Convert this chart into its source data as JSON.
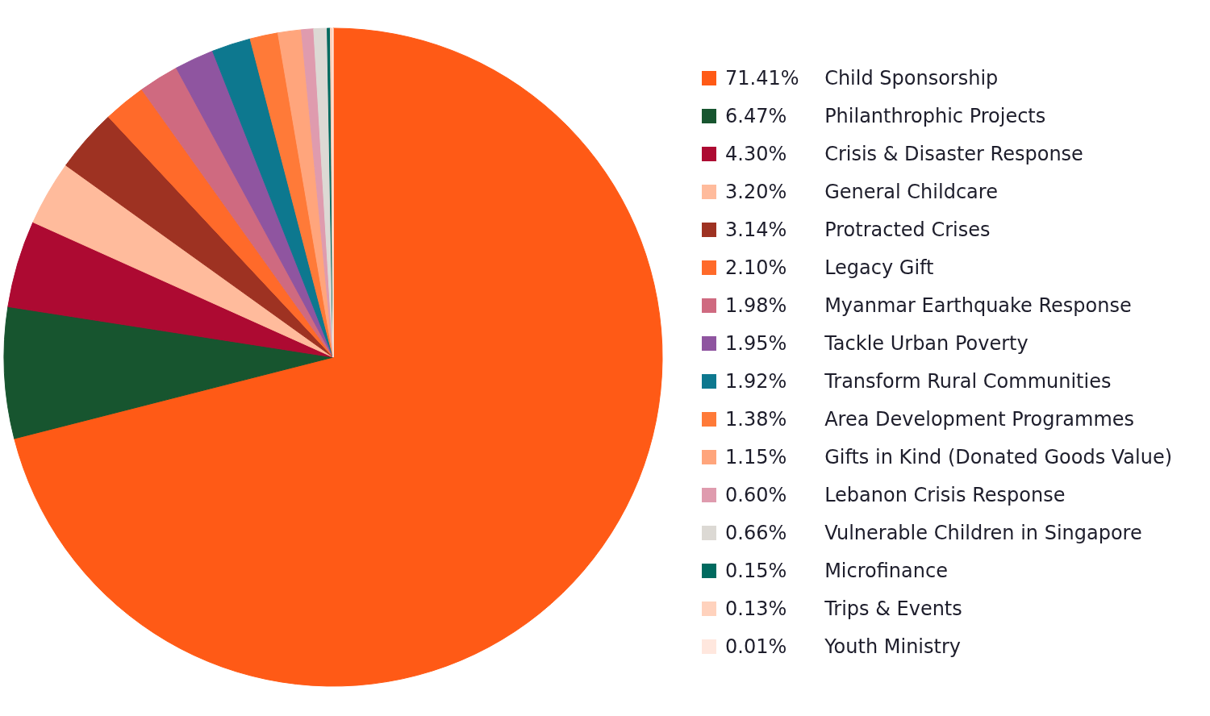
{
  "chart_data": {
    "type": "pie",
    "legend": "right",
    "categories": [
      "Child Sponsorship",
      "Philanthrophic Projects",
      "Crisis & Disaster Response",
      "General Childcare",
      "Protracted Crises",
      "Legacy Gift",
      "Myanmar Earthquake Response",
      "Tackle Urban Poverty",
      "Transform Rural Communities",
      "Area Development Programmes",
      "Gifts in Kind (Donated Goods Value)",
      "Lebanon Crisis Response",
      "Vulnerable Children in Singapore",
      "Microfinance",
      "Trips & Events",
      "Youth Ministry"
    ],
    "values": [
      71.41,
      6.47,
      4.3,
      3.2,
      3.14,
      2.1,
      1.98,
      1.95,
      1.92,
      1.38,
      1.15,
      0.6,
      0.66,
      0.15,
      0.13,
      0.01
    ],
    "value_labels": [
      "71.41%",
      "6.47%",
      "4.30%",
      "3.20%",
      "3.14%",
      "2.10%",
      "1.98%",
      "1.95%",
      "1.92%",
      "1.38%",
      "1.15%",
      "0.60%",
      "0.66%",
      "0.15%",
      "0.13%",
      "0.01%"
    ],
    "colors": [
      "#ff5a16",
      "#17552f",
      "#ad0a32",
      "#ffbb9c",
      "#9e3222",
      "#ff6a2a",
      "#cf6a80",
      "#8f55a0",
      "#0d788f",
      "#ff7a38",
      "#ffa57c",
      "#df9bae",
      "#dcd9d4",
      "#006a5f",
      "#ffd2bd",
      "#ffe7de"
    ]
  }
}
